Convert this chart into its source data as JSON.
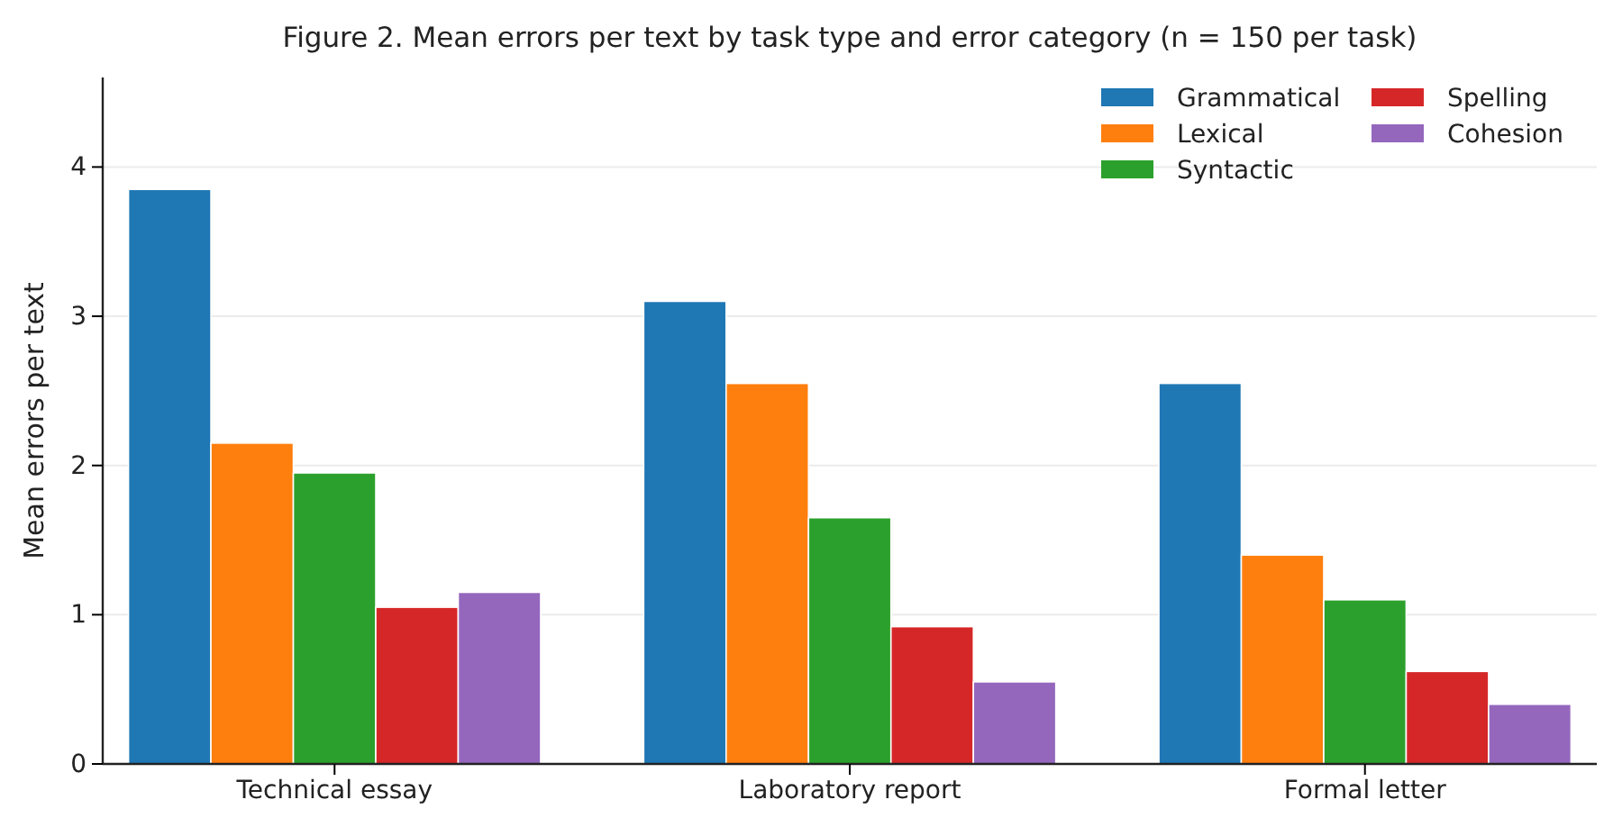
{
  "chart_data": {
    "type": "bar",
    "title": "Figure 2. Mean errors per text by task type and error category (n = 150 per task)",
    "ylabel": "Mean errors per text",
    "categories": [
      "Technical essay",
      "Laboratory report",
      "Formal letter"
    ],
    "series": [
      {
        "name": "Grammatical",
        "color": "#1f77b4",
        "values": [
          3.85,
          3.1,
          2.55
        ]
      },
      {
        "name": "Lexical",
        "color": "#ff7f0e",
        "values": [
          2.15,
          2.55,
          1.4
        ]
      },
      {
        "name": "Syntactic",
        "color": "#2ca02c",
        "values": [
          1.95,
          1.65,
          1.1
        ]
      },
      {
        "name": "Spelling",
        "color": "#d62728",
        "values": [
          1.05,
          0.92,
          0.62
        ]
      },
      {
        "name": "Cohesion",
        "color": "#9467bd",
        "values": [
          1.15,
          0.55,
          0.4
        ]
      }
    ],
    "ylim": [
      0,
      4.6
    ],
    "yticks": [
      0,
      1,
      2,
      3,
      4
    ],
    "grid": "y",
    "legend": "top right"
  }
}
